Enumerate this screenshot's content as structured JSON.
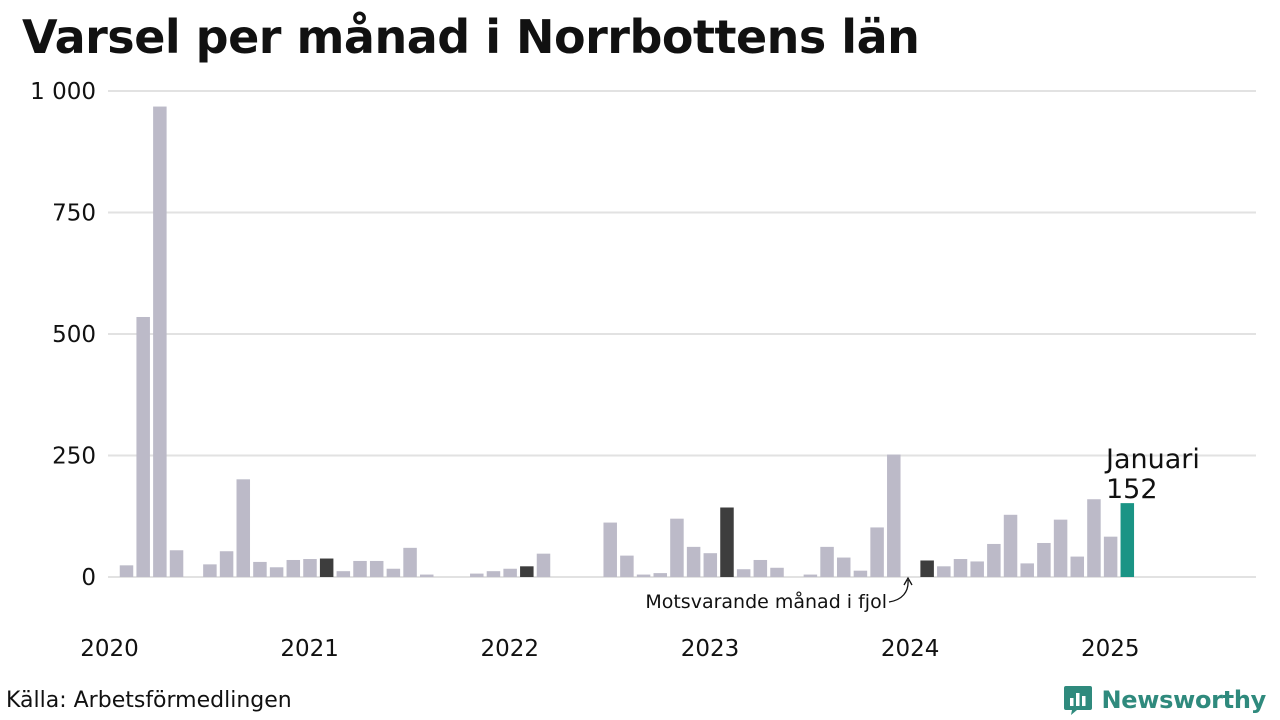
{
  "title": "Varsel per månad i Norrbottens län",
  "source": "Källa: Arbetsförmedlingen",
  "brand": {
    "name": "Newsworthy",
    "icon": "bar-chart-bubble-icon",
    "color": "#2f8a7d"
  },
  "annotation_previous": "Motsvarande månad i fjol",
  "colors": {
    "default": "#bcbac8",
    "previous": "#3d3d3d",
    "current": "#1a9485",
    "grid": "#e2e2e2"
  },
  "chart_data": {
    "type": "bar",
    "title": "Varsel per månad i Norrbottens län",
    "xlabel": "",
    "ylabel": "",
    "ylim": [
      0,
      1000
    ],
    "y_ticks": [
      0,
      250,
      500,
      750,
      1000
    ],
    "y_tick_labels": [
      "0",
      "250",
      "500",
      "750",
      "1 000"
    ],
    "x_range": [
      "2020-01",
      "2025-12"
    ],
    "x_ticks": [
      "2020-01",
      "2021-01",
      "2022-01",
      "2023-01",
      "2024-01",
      "2025-01"
    ],
    "x_tick_labels": [
      "2020",
      "2021",
      "2022",
      "2023",
      "2024",
      "2025"
    ],
    "grid": "horizontal",
    "highlight": {
      "current": "2025-01",
      "previous": [
        "2021-01",
        "2022-01",
        "2023-01",
        "2024-01"
      ]
    },
    "current_label": {
      "month": "Januari",
      "value": "152"
    },
    "categories": [
      "2020-01",
      "2020-02",
      "2020-03",
      "2020-04",
      "2020-05",
      "2020-06",
      "2020-07",
      "2020-08",
      "2020-09",
      "2020-10",
      "2020-11",
      "2020-12",
      "2021-01",
      "2021-02",
      "2021-03",
      "2021-04",
      "2021-05",
      "2021-06",
      "2021-07",
      "2021-08",
      "2021-09",
      "2021-10",
      "2021-11",
      "2021-12",
      "2022-01",
      "2022-02",
      "2022-03",
      "2022-04",
      "2022-05",
      "2022-06",
      "2022-07",
      "2022-08",
      "2022-09",
      "2022-10",
      "2022-11",
      "2022-12",
      "2023-01",
      "2023-02",
      "2023-03",
      "2023-04",
      "2023-05",
      "2023-06",
      "2023-07",
      "2023-08",
      "2023-09",
      "2023-10",
      "2023-11",
      "2023-12",
      "2024-01",
      "2024-02",
      "2024-03",
      "2024-04",
      "2024-05",
      "2024-06",
      "2024-07",
      "2024-08",
      "2024-09",
      "2024-10",
      "2024-11",
      "2024-12",
      "2025-01"
    ],
    "values": [
      24,
      535,
      968,
      55,
      0,
      26,
      53,
      201,
      31,
      20,
      35,
      37,
      38,
      12,
      33,
      33,
      17,
      60,
      5,
      0,
      0,
      7,
      12,
      17,
      22,
      48,
      0,
      0,
      0,
      112,
      44,
      5,
      8,
      120,
      62,
      49,
      143,
      16,
      35,
      19,
      0,
      5,
      62,
      40,
      13,
      102,
      252,
      0,
      34,
      22,
      37,
      32,
      68,
      128,
      28,
      70,
      118,
      42,
      160,
      83,
      152
    ]
  }
}
